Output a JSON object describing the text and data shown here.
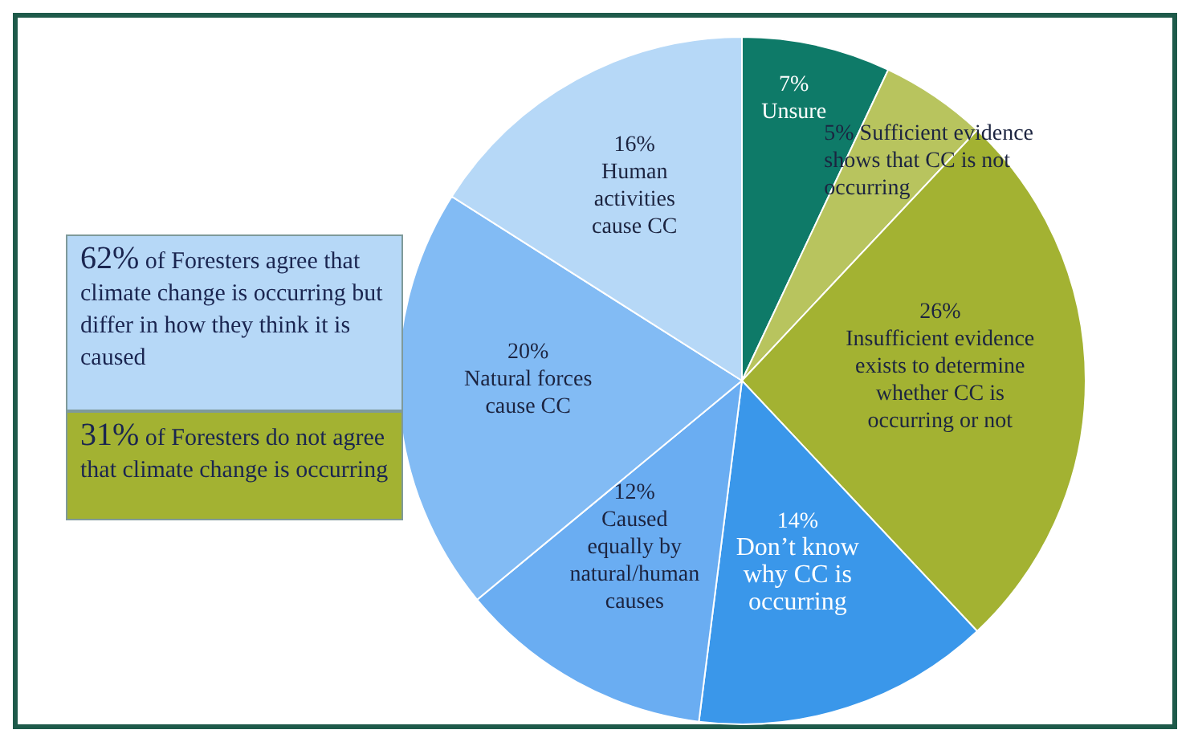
{
  "chart_data": {
    "type": "pie",
    "categories": [
      "Unsure",
      "Sufficient evidence shows that CC is not occurring",
      "Insufficient evidence exists to determine whether CC is occurring or not",
      "Don’t know why CC is occurring",
      "Caused equally by natural/human causes",
      "Natural forces cause CC",
      "Human activities cause CC"
    ],
    "values": [
      7,
      5,
      26,
      14,
      12,
      20,
      16
    ],
    "value_labels": [
      "7%",
      "5%",
      "26%",
      "14%",
      "12%",
      "20%",
      "16%"
    ],
    "colors": [
      "#0e7a68",
      "#b8c45e",
      "#a3b232",
      "#3a97ea",
      "#6aadf2",
      "#82bbf4",
      "#b6d8f7"
    ],
    "data_labels": true,
    "annotations": [
      "62% of Foresters agree that climate change is occurring but differ in how they think it is caused",
      "31% of Foresters do not agree that climate change is occurring"
    ]
  }
}
